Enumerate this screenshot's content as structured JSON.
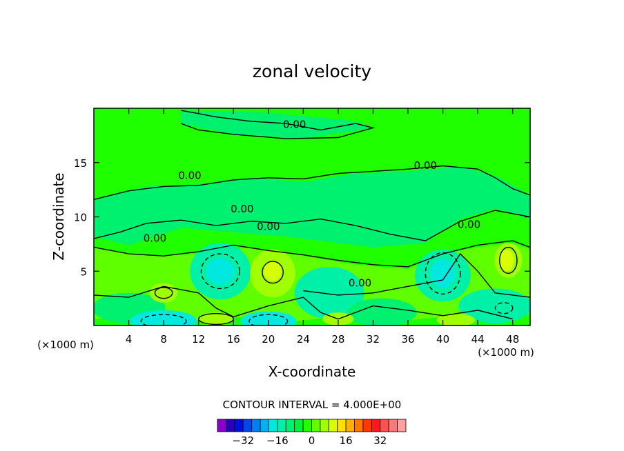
{
  "chart_data": {
    "type": "contour",
    "title": "zonal velocity",
    "xlabel": "X-coordinate",
    "ylabel": "Z-coordinate",
    "xunit": "(×1000 m)",
    "zunit": "(×1000 m)",
    "xlim": [
      0,
      50
    ],
    "ylim": [
      0,
      20
    ],
    "xticks": [
      "4",
      "8",
      "12",
      "16",
      "20",
      "24",
      "28",
      "32",
      "36",
      "40",
      "44",
      "48"
    ],
    "xtick_values": [
      4,
      8,
      12,
      16,
      20,
      24,
      28,
      32,
      36,
      40,
      44,
      48
    ],
    "yticks": [
      "5",
      "10",
      "15"
    ],
    "ytick_values": [
      5,
      10,
      15
    ],
    "contour_interval_label": "CONTOUR INTERVAL = 4.000E+00",
    "contour_labels": [
      "0.00",
      "0.00",
      "0.00",
      "0.00",
      "0.00",
      "0.00",
      "0.00",
      "0.00"
    ],
    "colorbar": {
      "labels": [
        "-32",
        "-16",
        "0",
        "16",
        "32"
      ],
      "label_display": [
        "−32",
        "−16",
        "0",
        "16",
        "32"
      ],
      "label_values": [
        -32,
        -16,
        0,
        16,
        32
      ],
      "colors": [
        "#8a00c8",
        "#2a00b4",
        "#0010d8",
        "#0048e8",
        "#0080f0",
        "#00b0f0",
        "#00e8e0",
        "#00f0a8",
        "#00f070",
        "#00f040",
        "#20ff00",
        "#60ff00",
        "#a0ff00",
        "#d8ff00",
        "#ffe000",
        "#ffb000",
        "#ff7800",
        "#ff3800",
        "#ff1818",
        "#ff5050",
        "#ff7878",
        "#ffa0a0"
      ]
    },
    "field_colors": {
      "neg": "#00f070",
      "neg2": "#00f0a8",
      "neg3": "#00e8e0",
      "zero": "#20ff00",
      "pos": "#60ff00",
      "pos2": "#a0ff00",
      "pos3": "#d8ff00"
    }
  }
}
